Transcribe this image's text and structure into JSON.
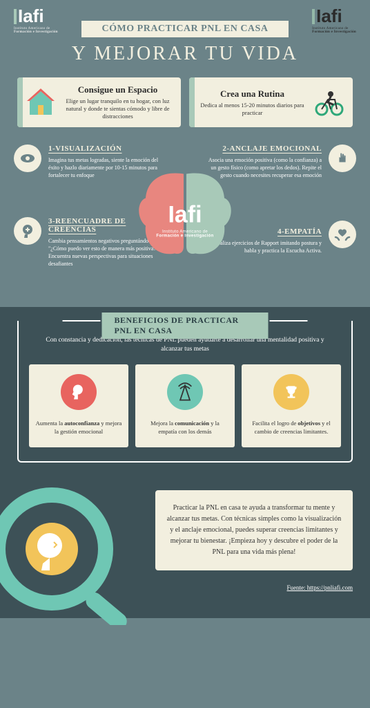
{
  "logo": {
    "text": "Iafi",
    "sub": "Instituto Americano de",
    "sub2": "Formación e Investigación"
  },
  "banner": "CÓMO PRACTICAR PNL EN CASA",
  "title": "Y MEJORAR TU VIDA",
  "cards": [
    {
      "title": "Consigue un Espacio",
      "text": "Elige un lugar tranquilo en tu hogar, con luz natural y donde te sientas cómodo y libre de distracciones"
    },
    {
      "title": "Crea una Rutina",
      "text": "Dedica al menos 15-20 minutos diarios para practicar"
    }
  ],
  "center": {
    "big": "Iafi",
    "sub1": "Instituto Americano de",
    "sub2": "Formación e Investigación"
  },
  "techniques": [
    {
      "title": "1-VISUALIZACIÓN",
      "text": "Imagina tus metas logradas, siente la emoción del éxito y hazlo diariamente por 10-15 minutos para fortalecer tu enfoque"
    },
    {
      "title": "2-ANCLAJE EMOCIONAL",
      "text": "Asocia una emoción positiva (como la confianza) a un gesto físico (como apretar los dedos). Repite el gesto cuando necesites recuperar esa emoción"
    },
    {
      "title": "3-REENCUADRE DE CREENCIAS",
      "text": "Cambia pensamientos negativos preguntándote: \"¿Cómo puedo ver esto de manera más positiva?\". Encuentra nuevas perspectivas para situaciones desafiantes"
    },
    {
      "title": "4-EMPATÍA",
      "text": "Realiza ejercicios de Rapport imitando postura y habla y practica la Escucha Activa."
    }
  ],
  "benefits": {
    "title": "BENEFICIOS DE PRACTICAR PNL EN CASA",
    "intro": "Con constancia y dedicación, las técnicas de PNL pueden ayudarte a desarrollar una mentalidad positiva y alcanzar tus metas",
    "items": [
      {
        "color": "#e8645f",
        "html": "Aumenta la <b>autoconfianza</b> y mejora la gestión emocional"
      },
      {
        "color": "#6fc7b4",
        "html": "Mejora la <b>comunicación</b> y la empatía con los demás"
      },
      {
        "color": "#f2c45a",
        "html": "Facilita el logro de <b>objetivos</b> y el cambio de creencias limitantes."
      }
    ]
  },
  "conclusion": "Practicar la PNL en casa te ayuda a transformar tu mente y alcanzar tus metas. Con técnicas simples como la visualización y el anclaje emocional, puedes superar creencias limitantes y mejorar tu bienestar. ¡Empieza hoy y descubre el poder de la PNL para una vida más plena!",
  "source": "Fuente: https://pnliafi.com",
  "colors": {
    "cream": "#f2efdf",
    "mint": "#a8c9b8",
    "coral": "#e8645f",
    "teal": "#6fc7b4",
    "gold": "#f2c45a",
    "dark": "#3d5157",
    "bg": "#6b8388"
  }
}
